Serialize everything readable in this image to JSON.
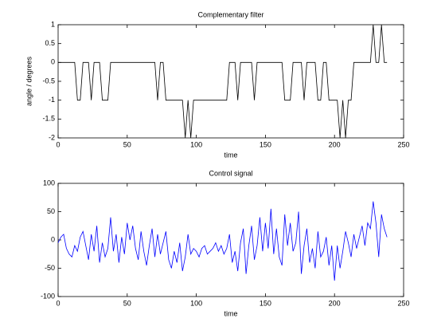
{
  "chart_data": [
    {
      "type": "line",
      "title": "Complementary filter",
      "xlabel": "time",
      "ylabel": "angle / degrees",
      "xlim": [
        0,
        250
      ],
      "xticks": [
        0,
        50,
        100,
        150,
        200,
        250
      ],
      "ylim": [
        -2,
        1
      ],
      "yticks": [
        -2,
        -1.5,
        -1,
        -0.5,
        0,
        0.5,
        1
      ],
      "grid": false,
      "series": [
        {
          "color": "#000000",
          "x": [
            0,
            2,
            4,
            6,
            8,
            10,
            12,
            14,
            16,
            18,
            20,
            22,
            24,
            26,
            28,
            30,
            32,
            34,
            36,
            38,
            40,
            42,
            44,
            46,
            48,
            50,
            52,
            54,
            56,
            58,
            60,
            62,
            64,
            66,
            68,
            70,
            72,
            74,
            76,
            78,
            80,
            82,
            84,
            86,
            88,
            90,
            92,
            94,
            96,
            98,
            100,
            102,
            104,
            106,
            108,
            110,
            112,
            114,
            116,
            118,
            120,
            122,
            124,
            126,
            128,
            130,
            132,
            134,
            136,
            138,
            140,
            142,
            144,
            146,
            148,
            150,
            152,
            154,
            156,
            158,
            160,
            162,
            164,
            166,
            168,
            170,
            172,
            174,
            176,
            178,
            180,
            182,
            184,
            186,
            188,
            190,
            192,
            194,
            196,
            198,
            200,
            202,
            204,
            206,
            208,
            210,
            212,
            214,
            216,
            218,
            220,
            222,
            224,
            226,
            228,
            230,
            232,
            234,
            236,
            238
          ],
          "values": [
            0,
            0,
            0,
            0,
            0,
            0,
            0,
            -1,
            -1,
            0,
            0,
            0,
            -1,
            0,
            0,
            0,
            -1,
            -1,
            -1,
            0,
            0,
            0,
            0,
            0,
            0,
            0,
            0,
            0,
            0,
            0,
            0,
            0,
            0,
            0,
            0,
            0,
            -1,
            0,
            0,
            -1,
            -1,
            -1,
            -1,
            -1,
            -1,
            -1,
            -2,
            -1,
            -2,
            -1,
            -1,
            -1,
            -1,
            -1,
            -1,
            -1,
            -1,
            -1,
            -1,
            -1,
            -1,
            -1,
            0,
            0,
            0,
            -1,
            0,
            0,
            0,
            0,
            0,
            -1,
            0,
            0,
            0,
            0,
            0,
            0,
            0,
            0,
            0,
            0,
            -1,
            -1,
            -1,
            0,
            0,
            0,
            0,
            -1,
            0,
            0,
            0,
            0,
            -1,
            -1,
            0,
            0,
            -1,
            -1,
            -1,
            -1,
            -2,
            -1,
            -2,
            -1,
            -1,
            0,
            0,
            0,
            0,
            0,
            0,
            0,
            1,
            0,
            0,
            1,
            0,
            0
          ]
        }
      ]
    },
    {
      "type": "line",
      "title": "Control signal",
      "xlabel": "time",
      "xlim": [
        0,
        250
      ],
      "xticks": [
        0,
        50,
        100,
        150,
        200,
        250
      ],
      "ylim": [
        -100,
        100
      ],
      "yticks": [
        -100,
        -50,
        0,
        50,
        100
      ],
      "grid": false,
      "series": [
        {
          "color": "#0000ff",
          "x": [
            0,
            2,
            4,
            6,
            8,
            10,
            12,
            14,
            16,
            18,
            20,
            22,
            24,
            26,
            28,
            30,
            32,
            34,
            36,
            38,
            40,
            42,
            44,
            46,
            48,
            50,
            52,
            54,
            56,
            58,
            60,
            62,
            64,
            66,
            68,
            70,
            72,
            74,
            76,
            78,
            80,
            82,
            84,
            86,
            88,
            90,
            92,
            94,
            96,
            98,
            100,
            102,
            104,
            106,
            108,
            110,
            112,
            114,
            116,
            118,
            120,
            122,
            124,
            126,
            128,
            130,
            132,
            134,
            136,
            138,
            140,
            142,
            144,
            146,
            148,
            150,
            152,
            154,
            156,
            158,
            160,
            162,
            164,
            166,
            168,
            170,
            172,
            174,
            176,
            178,
            180,
            182,
            184,
            186,
            188,
            190,
            192,
            194,
            196,
            198,
            200,
            202,
            204,
            206,
            208,
            210,
            212,
            214,
            216,
            218,
            220,
            222,
            224,
            226,
            228,
            230,
            232,
            234,
            236,
            238
          ],
          "values": [
            -5,
            5,
            10,
            -15,
            -25,
            -30,
            -10,
            -20,
            5,
            15,
            -10,
            -35,
            10,
            -20,
            25,
            -40,
            -5,
            -30,
            -15,
            40,
            -20,
            10,
            -40,
            5,
            -25,
            30,
            0,
            25,
            -15,
            -35,
            15,
            -20,
            -45,
            -10,
            20,
            -30,
            10,
            -25,
            -5,
            15,
            -35,
            -50,
            -20,
            -40,
            -5,
            -55,
            -30,
            10,
            -25,
            -15,
            -20,
            -30,
            -15,
            -10,
            -25,
            -20,
            -15,
            -5,
            -20,
            -10,
            -25,
            -15,
            10,
            -40,
            -20,
            -55,
            -5,
            20,
            -60,
            -10,
            25,
            -35,
            -10,
            40,
            -20,
            30,
            -15,
            55,
            -25,
            20,
            -30,
            -45,
            45,
            -10,
            30,
            -20,
            -5,
            50,
            -60,
            -10,
            20,
            -40,
            -15,
            -50,
            15,
            -30,
            -20,
            5,
            -45,
            -10,
            -72,
            -10,
            -50,
            -20,
            15,
            -5,
            -30,
            10,
            -15,
            5,
            25,
            -10,
            30,
            20,
            68,
            30,
            -30,
            45,
            20,
            5
          ]
        }
      ]
    }
  ]
}
